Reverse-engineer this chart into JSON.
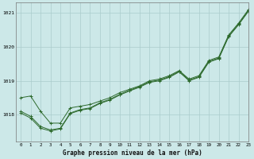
{
  "title": "Graphe pression niveau de la mer (hPa)",
  "bg_color": "#cce8e8",
  "grid_color": "#aacccc",
  "line_color": "#2d6a2d",
  "marker_color": "#2d6a2d",
  "xlim": [
    -0.5,
    23
  ],
  "ylim": [
    1017.2,
    1021.3
  ],
  "yticks": [
    1018,
    1019,
    1020,
    1021
  ],
  "xticks": [
    0,
    1,
    2,
    3,
    4,
    5,
    6,
    7,
    8,
    9,
    10,
    11,
    12,
    13,
    14,
    15,
    16,
    17,
    18,
    19,
    20,
    21,
    22,
    23
  ],
  "series": [
    [
      1018.5,
      1018.55,
      1018.1,
      1017.75,
      1017.75,
      1018.2,
      1018.25,
      1018.3,
      1018.4,
      1018.5,
      1018.65,
      1018.75,
      1018.85,
      1019.0,
      1019.05,
      1019.15,
      1019.3,
      1019.05,
      1019.15,
      1019.6,
      1019.7,
      1020.35,
      1020.7,
      1021.1
    ],
    [
      1018.1,
      1017.95,
      1017.65,
      1017.55,
      1017.6,
      1018.05,
      1018.15,
      1018.2,
      1018.35,
      1018.45,
      1018.6,
      1018.72,
      1018.83,
      1018.97,
      1019.02,
      1019.12,
      1019.28,
      1019.02,
      1019.12,
      1019.57,
      1019.67,
      1020.32,
      1020.67,
      1021.07
    ],
    [
      1018.05,
      1017.9,
      1017.6,
      1017.52,
      1017.58,
      1018.03,
      1018.13,
      1018.18,
      1018.33,
      1018.43,
      1018.58,
      1018.7,
      1018.81,
      1018.95,
      1019.0,
      1019.1,
      1019.26,
      1019.0,
      1019.1,
      1019.55,
      1019.65,
      1020.3,
      1020.65,
      1021.05
    ]
  ]
}
